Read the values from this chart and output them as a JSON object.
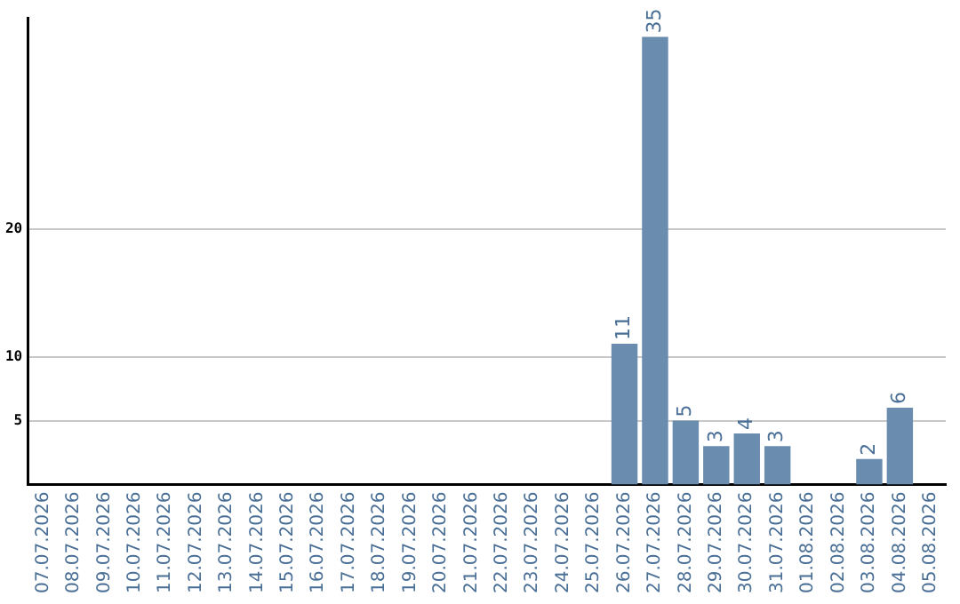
{
  "chart_data": {
    "type": "bar",
    "categories": [
      "07.07.2026",
      "08.07.2026",
      "09.07.2026",
      "10.07.2026",
      "11.07.2026",
      "12.07.2026",
      "13.07.2026",
      "14.07.2026",
      "15.07.2026",
      "16.07.2026",
      "17.07.2026",
      "18.07.2026",
      "19.07.2026",
      "20.07.2026",
      "21.07.2026",
      "22.07.2026",
      "23.07.2026",
      "24.07.2026",
      "25.07.2026",
      "26.07.2026",
      "27.07.2026",
      "28.07.2026",
      "29.07.2026",
      "30.07.2026",
      "31.07.2026",
      "01.08.2026",
      "02.08.2026",
      "03.08.2026",
      "04.08.2026",
      "05.08.2026"
    ],
    "values": [
      0,
      0,
      0,
      0,
      0,
      0,
      0,
      0,
      0,
      0,
      0,
      0,
      0,
      0,
      0,
      0,
      0,
      0,
      0,
      11,
      35,
      5,
      3,
      4,
      3,
      0,
      0,
      2,
      6,
      0
    ],
    "value_labels": [
      null,
      null,
      null,
      null,
      null,
      null,
      null,
      null,
      null,
      null,
      null,
      null,
      null,
      null,
      null,
      null,
      null,
      null,
      null,
      "11",
      "35",
      "5",
      "3",
      "4",
      "3",
      null,
      null,
      "2",
      "6",
      null
    ],
    "color": "#6a8caf",
    "ylim": [
      0,
      36.5
    ],
    "yticks": [
      5,
      10,
      20
    ],
    "grid": "y",
    "legend": false
  }
}
